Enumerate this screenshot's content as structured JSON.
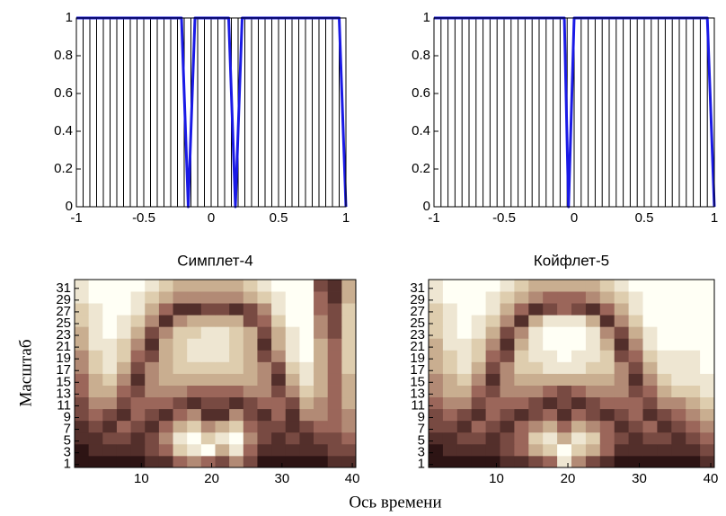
{
  "xlabel": "Ось времени",
  "chart_data": [
    {
      "type": "line",
      "xlim": [
        -1,
        1
      ],
      "ylim": [
        0,
        1
      ],
      "xticks": [
        -1,
        -0.5,
        0,
        0.5,
        1
      ],
      "yticks": [
        0,
        0.2,
        0.4,
        0.6,
        0.8,
        1
      ],
      "stems": {
        "color": "#000000",
        "x": [
          -1,
          -0.95,
          -0.9,
          -0.85,
          -0.8,
          -0.75,
          -0.7,
          -0.65,
          -0.6,
          -0.55,
          -0.5,
          -0.45,
          -0.4,
          -0.35,
          -0.3,
          -0.25,
          -0.2,
          -0.15,
          -0.1,
          -0.05,
          0,
          0.05,
          0.1,
          0.15,
          0.2,
          0.25,
          0.3,
          0.35,
          0.4,
          0.45,
          0.5,
          0.55,
          0.6,
          0.65,
          0.7,
          0.75,
          0.8,
          0.85,
          0.9,
          0.95,
          1
        ],
        "values": [
          1,
          1,
          1,
          1,
          1,
          1,
          1,
          1,
          1,
          1,
          1,
          1,
          1,
          1,
          1,
          1,
          1,
          1,
          1,
          1,
          1,
          1,
          1,
          1,
          1,
          1,
          1,
          1,
          1,
          1,
          1,
          1,
          1,
          1,
          1,
          1,
          1,
          1,
          1,
          1,
          1
        ]
      },
      "series": [
        {
          "color": "#1a1ae6",
          "x": [
            -1,
            -0.22,
            -0.17,
            -0.12,
            0.13,
            0.18,
            0.23,
            0.95,
            1
          ],
          "values": [
            1,
            1,
            0,
            1,
            1,
            0,
            1,
            1,
            0
          ]
        }
      ]
    },
    {
      "type": "line",
      "xlim": [
        -1,
        1
      ],
      "ylim": [
        0,
        1
      ],
      "xticks": [
        -1,
        -0.5,
        0,
        0.5,
        1
      ],
      "yticks": [
        0,
        0.2,
        0.4,
        0.6,
        0.8,
        1
      ],
      "stems": {
        "color": "#000000",
        "x": [
          -1,
          -0.95,
          -0.9,
          -0.85,
          -0.8,
          -0.75,
          -0.7,
          -0.65,
          -0.6,
          -0.55,
          -0.5,
          -0.45,
          -0.4,
          -0.35,
          -0.3,
          -0.25,
          -0.2,
          -0.15,
          -0.1,
          -0.05,
          0,
          0.05,
          0.1,
          0.15,
          0.2,
          0.25,
          0.3,
          0.35,
          0.4,
          0.45,
          0.5,
          0.55,
          0.6,
          0.65,
          0.7,
          0.75,
          0.8,
          0.85,
          0.9,
          0.95,
          1
        ],
        "values": [
          1,
          1,
          1,
          1,
          1,
          1,
          1,
          1,
          1,
          1,
          1,
          1,
          1,
          1,
          1,
          1,
          1,
          1,
          1,
          1,
          1,
          1,
          1,
          1,
          1,
          1,
          1,
          1,
          1,
          1,
          1,
          1,
          1,
          1,
          1,
          1,
          1,
          1,
          1,
          1,
          1
        ]
      },
      "series": [
        {
          "color": "#1a1ae6",
          "x": [
            -1,
            -0.07,
            -0.04,
            0,
            0.95,
            1
          ],
          "values": [
            1,
            1,
            0,
            1,
            1,
            0
          ]
        }
      ]
    },
    {
      "type": "heatmap",
      "title": "Симплет-4",
      "ylabel": "Масштаб",
      "colormap": "pink",
      "xlim": [
        0.5,
        40.5
      ],
      "ylim": [
        0.5,
        32.5
      ],
      "xticks": [
        10,
        20,
        30,
        40
      ],
      "yticks": [
        1,
        3,
        5,
        7,
        9,
        11,
        13,
        15,
        17,
        19,
        21,
        23,
        25,
        27,
        29,
        31
      ],
      "x": [
        1.5,
        3.5,
        5.5,
        7.5,
        9.5,
        11.5,
        13.5,
        15.5,
        17.5,
        19.5,
        21.5,
        23.5,
        25.5,
        27.5,
        29.5,
        31.5,
        33.5,
        35.5,
        37.5,
        39.5
      ],
      "y": [
        1.5,
        3.5,
        5.5,
        7.5,
        9.5,
        11.5,
        13.5,
        15.5,
        17.5,
        19.5,
        21.5,
        23.5,
        25.5,
        27.5,
        29.5,
        31.5
      ],
      "z": [
        [
          1,
          1,
          1,
          1,
          1,
          2,
          2,
          4,
          5,
          4,
          3,
          5,
          3,
          1,
          1,
          1,
          1,
          1,
          2,
          2
        ],
        [
          1,
          2,
          2,
          2,
          2,
          3,
          4,
          7,
          8,
          9,
          6,
          8,
          4,
          2,
          2,
          2,
          2,
          2,
          3,
          3
        ],
        [
          2,
          2,
          3,
          3,
          2,
          3,
          5,
          8,
          9,
          7,
          8,
          9,
          5,
          3,
          2,
          3,
          2,
          3,
          3,
          4
        ],
        [
          2,
          3,
          2,
          4,
          3,
          2,
          4,
          6,
          7,
          5,
          6,
          7,
          4,
          3,
          3,
          2,
          3,
          4,
          4,
          5
        ],
        [
          3,
          4,
          3,
          2,
          4,
          3,
          2,
          4,
          5,
          2,
          2,
          5,
          3,
          2,
          4,
          2,
          5,
          5,
          4,
          5
        ],
        [
          3,
          5,
          5,
          3,
          4,
          4,
          4,
          3,
          2,
          3,
          3,
          2,
          3,
          4,
          4,
          3,
          6,
          5,
          4,
          6
        ],
        [
          4,
          6,
          6,
          4,
          3,
          5,
          5,
          5,
          4,
          4,
          4,
          4,
          5,
          5,
          3,
          5,
          7,
          6,
          4,
          6
        ],
        [
          4,
          6,
          7,
          5,
          2,
          5,
          6,
          6,
          6,
          6,
          6,
          6,
          6,
          5,
          2,
          6,
          8,
          6,
          4,
          6
        ],
        [
          5,
          7,
          8,
          6,
          3,
          5,
          6,
          7,
          7,
          7,
          7,
          7,
          6,
          5,
          3,
          7,
          8,
          6,
          4,
          7
        ],
        [
          5,
          7,
          8,
          7,
          4,
          3,
          6,
          7,
          8,
          8,
          8,
          7,
          6,
          3,
          5,
          8,
          9,
          6,
          4,
          7
        ],
        [
          6,
          8,
          8,
          7,
          5,
          2,
          6,
          7,
          8,
          8,
          8,
          7,
          6,
          2,
          6,
          8,
          9,
          6,
          4,
          7
        ],
        [
          6,
          8,
          9,
          8,
          6,
          3,
          5,
          7,
          7,
          8,
          8,
          7,
          6,
          3,
          6,
          8,
          9,
          5,
          3,
          7
        ],
        [
          7,
          8,
          9,
          8,
          7,
          5,
          2,
          5,
          6,
          6,
          6,
          6,
          3,
          4,
          7,
          9,
          9,
          5,
          3,
          7
        ],
        [
          7,
          8,
          9,
          9,
          8,
          6,
          4,
          2,
          2,
          3,
          3,
          2,
          3,
          5,
          8,
          9,
          9,
          4,
          3,
          7
        ],
        [
          8,
          9,
          9,
          9,
          8,
          7,
          6,
          5,
          5,
          5,
          5,
          5,
          6,
          7,
          8,
          9,
          9,
          4,
          2,
          6
        ],
        [
          8,
          9,
          9,
          9,
          9,
          8,
          7,
          6,
          6,
          6,
          6,
          6,
          7,
          8,
          9,
          9,
          9,
          3,
          2,
          6
        ]
      ]
    },
    {
      "type": "heatmap",
      "title": "Койфлет-5",
      "colormap": "pink",
      "xlim": [
        0.5,
        40.5
      ],
      "ylim": [
        0.5,
        32.5
      ],
      "xticks": [
        10,
        20,
        30,
        40
      ],
      "yticks": [
        1,
        3,
        5,
        7,
        9,
        11,
        13,
        15,
        17,
        19,
        21,
        23,
        25,
        27,
        29,
        31
      ],
      "x": [
        1.5,
        3.5,
        5.5,
        7.5,
        9.5,
        11.5,
        13.5,
        15.5,
        17.5,
        19.5,
        21.5,
        23.5,
        25.5,
        27.5,
        29.5,
        31.5,
        33.5,
        35.5,
        37.5,
        39.5
      ],
      "y": [
        1.5,
        3.5,
        5.5,
        7.5,
        9.5,
        11.5,
        13.5,
        15.5,
        17.5,
        19.5,
        21.5,
        23.5,
        25.5,
        27.5,
        29.5,
        31.5
      ],
      "z": [
        [
          1,
          1,
          1,
          1,
          1,
          2,
          2,
          3,
          4,
          8,
          5,
          3,
          2,
          1,
          1,
          1,
          1,
          1,
          1,
          2
        ],
        [
          1,
          2,
          2,
          2,
          2,
          3,
          4,
          6,
          7,
          9,
          7,
          6,
          4,
          2,
          2,
          2,
          2,
          2,
          2,
          3
        ],
        [
          2,
          2,
          3,
          3,
          2,
          3,
          4,
          7,
          8,
          6,
          8,
          7,
          4,
          3,
          2,
          3,
          3,
          2,
          3,
          4
        ],
        [
          3,
          3,
          2,
          4,
          3,
          2,
          4,
          5,
          6,
          4,
          6,
          5,
          4,
          2,
          3,
          4,
          2,
          3,
          4,
          5
        ],
        [
          3,
          4,
          3,
          2,
          4,
          3,
          2,
          3,
          4,
          2,
          4,
          3,
          2,
          3,
          4,
          2,
          3,
          4,
          5,
          6
        ],
        [
          4,
          5,
          5,
          3,
          4,
          4,
          4,
          3,
          2,
          3,
          2,
          3,
          4,
          4,
          4,
          3,
          5,
          5,
          6,
          7
        ],
        [
          5,
          6,
          6,
          4,
          3,
          5,
          5,
          5,
          4,
          3,
          4,
          5,
          5,
          5,
          3,
          4,
          6,
          7,
          7,
          8
        ],
        [
          5,
          6,
          7,
          5,
          2,
          5,
          6,
          6,
          6,
          6,
          6,
          6,
          6,
          5,
          2,
          5,
          7,
          8,
          8,
          8
        ],
        [
          6,
          7,
          8,
          6,
          3,
          5,
          7,
          7,
          8,
          8,
          8,
          7,
          7,
          5,
          3,
          6,
          8,
          8,
          8,
          9
        ],
        [
          6,
          7,
          8,
          7,
          4,
          3,
          7,
          8,
          8,
          9,
          8,
          8,
          7,
          3,
          4,
          7,
          8,
          8,
          8,
          9
        ],
        [
          6,
          8,
          8,
          7,
          5,
          2,
          6,
          8,
          9,
          9,
          9,
          8,
          6,
          2,
          5,
          8,
          9,
          9,
          9,
          9
        ],
        [
          7,
          8,
          9,
          8,
          6,
          3,
          5,
          8,
          9,
          9,
          9,
          8,
          5,
          3,
          6,
          8,
          9,
          9,
          9,
          9
        ],
        [
          7,
          8,
          9,
          8,
          7,
          5,
          2,
          6,
          8,
          8,
          8,
          6,
          2,
          5,
          7,
          9,
          9,
          9,
          9,
          9
        ],
        [
          7,
          8,
          9,
          9,
          8,
          6,
          4,
          2,
          3,
          4,
          3,
          2,
          4,
          6,
          8,
          9,
          9,
          9,
          9,
          9
        ],
        [
          8,
          9,
          9,
          9,
          8,
          7,
          6,
          5,
          4,
          4,
          4,
          5,
          6,
          7,
          8,
          9,
          9,
          9,
          9,
          9
        ],
        [
          8,
          9,
          9,
          9,
          9,
          8,
          7,
          6,
          6,
          6,
          6,
          6,
          7,
          8,
          9,
          9,
          9,
          9,
          9,
          9
        ]
      ]
    }
  ]
}
